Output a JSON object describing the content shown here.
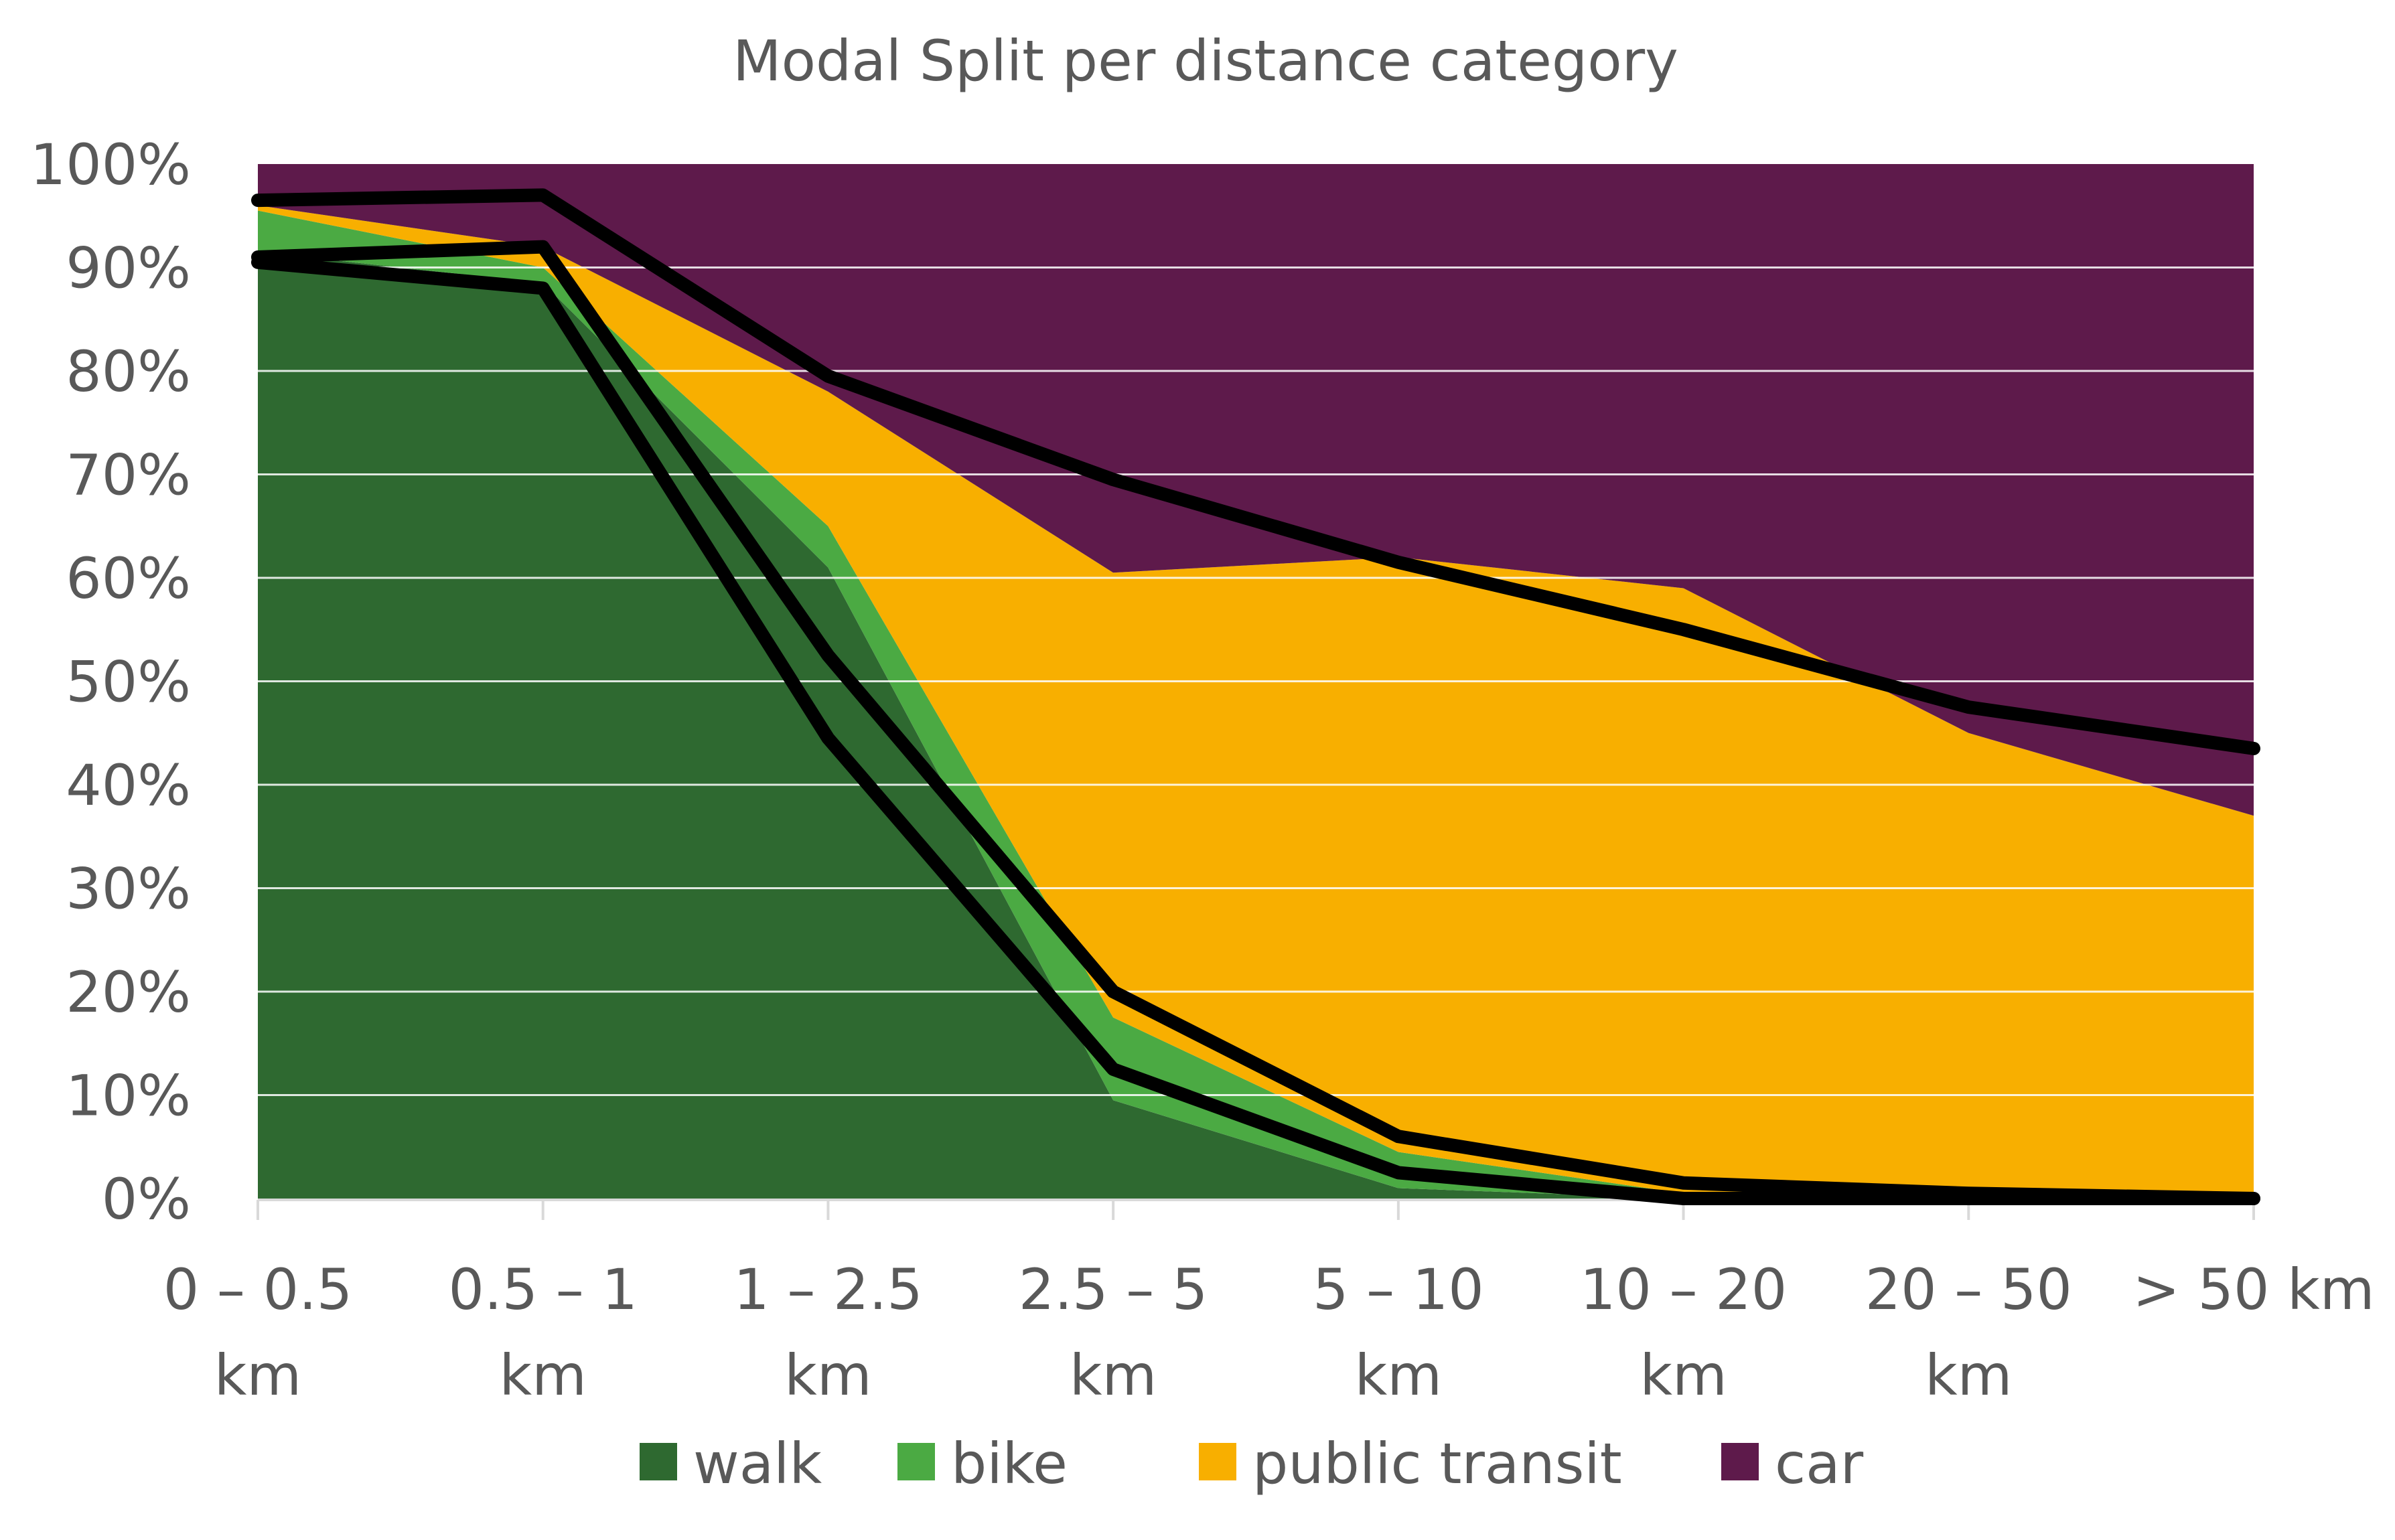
{
  "chart_data": {
    "type": "area",
    "stacked": true,
    "percent_scale": true,
    "title": "Modal Split per distance category",
    "xlabel": "",
    "ylabel": "",
    "ylim": [
      0,
      100
    ],
    "y_ticks": [
      "0%",
      "10%",
      "20%",
      "30%",
      "40%",
      "50%",
      "60%",
      "70%",
      "80%",
      "90%",
      "100%"
    ],
    "categories": [
      [
        "0 – 0.5",
        "km"
      ],
      [
        "0.5 – 1",
        "km"
      ],
      [
        "1 – 2.5",
        "km"
      ],
      [
        "2.5 – 5",
        "km"
      ],
      [
        "5 – 10",
        "km"
      ],
      [
        "10 – 20",
        "km"
      ],
      [
        "20 – 50",
        "km"
      ],
      [
        "> 50 km"
      ]
    ],
    "grid": true,
    "legend_position": "bottom",
    "series": [
      {
        "name": "walk",
        "color": "#2E6930",
        "values": [
          91.5,
          88.5,
          61,
          9.5,
          1,
          0,
          0,
          0
        ]
      },
      {
        "name": "bike",
        "color": "#4BAA43",
        "values": [
          4,
          1.5,
          4,
          8,
          3.5,
          0.5,
          0,
          0
        ]
      },
      {
        "name": "public transit",
        "color": "#F8AF00",
        "values": [
          0.5,
          2,
          13,
          43,
          57.5,
          58.5,
          45,
          37
        ]
      },
      {
        "name": "car",
        "color": "#5E1A4B",
        "values": [
          4,
          8,
          22,
          39.5,
          38,
          41,
          55,
          63
        ]
      }
    ],
    "overlay_lines": [
      {
        "name": "overlay-line-1",
        "color": "#000000",
        "values": [
          90.5,
          88,
          44.5,
          12.5,
          2.5,
          0,
          0,
          0
        ]
      },
      {
        "name": "overlay-line-2",
        "color": "#000000",
        "values": [
          91,
          92,
          52.5,
          20,
          6,
          1.5,
          0.5,
          0
        ]
      },
      {
        "name": "overlay-line-3",
        "color": "#000000",
        "values": [
          96.5,
          97,
          79.5,
          69.5,
          61.5,
          55,
          47.5,
          43.5
        ]
      }
    ]
  }
}
